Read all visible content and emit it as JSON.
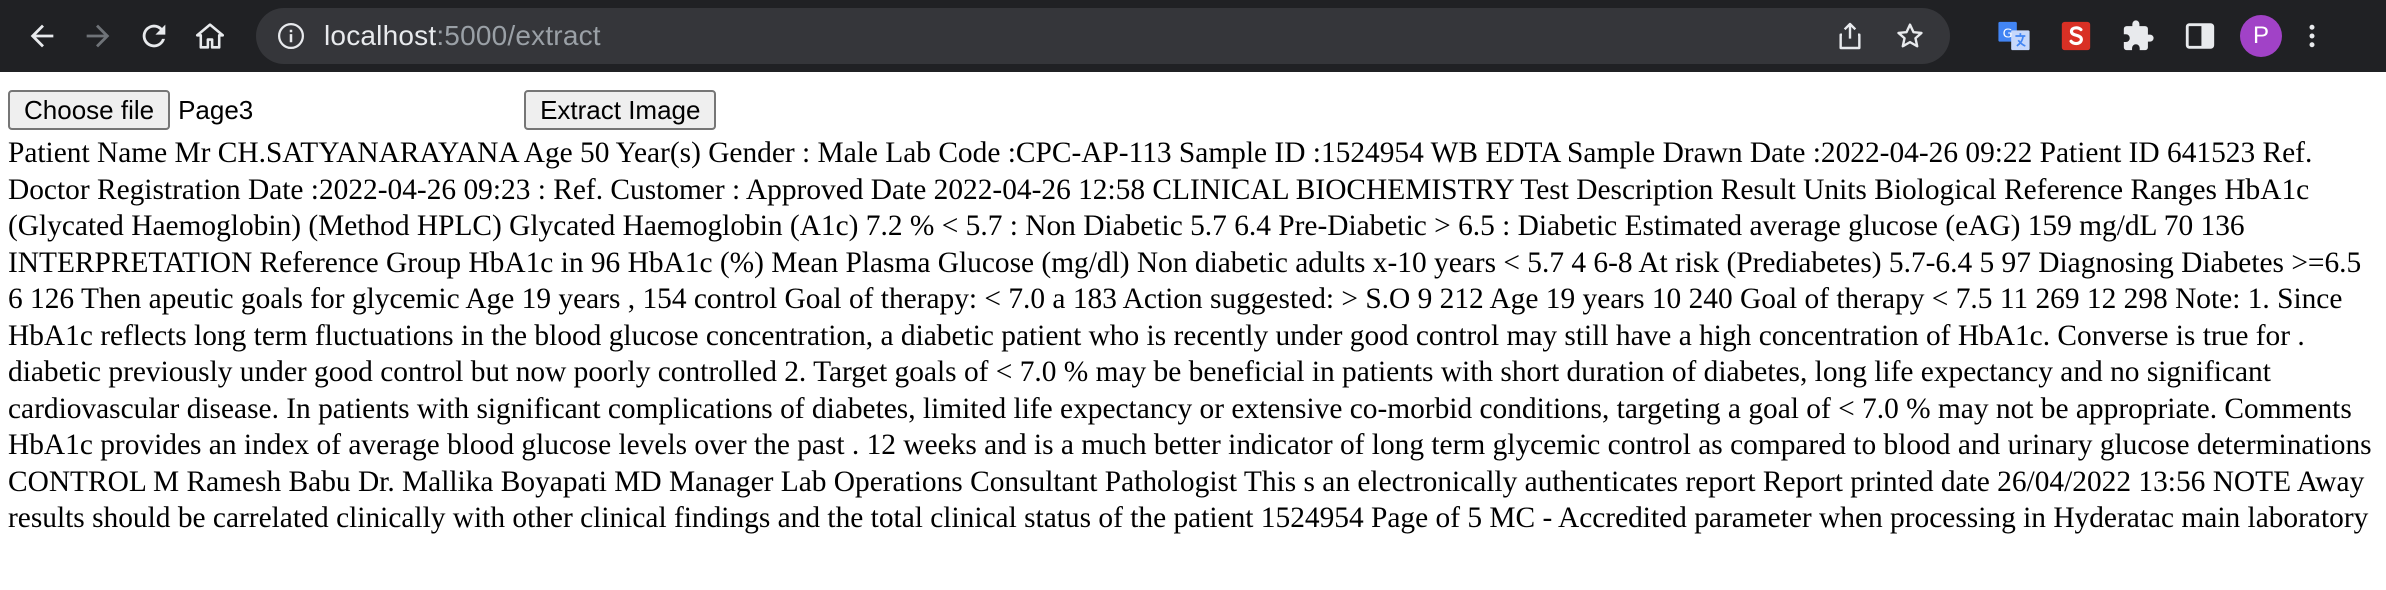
{
  "browser": {
    "url_host": "localhost",
    "url_rest": ":5000/extract",
    "avatar_letter": "P",
    "icons": [
      "back-icon",
      "forward-icon",
      "reload-icon",
      "home-icon",
      "info-icon",
      "share-icon",
      "star-icon",
      "translate-extension-icon",
      "s-extension-icon",
      "puzzle-icon",
      "sidebar-icon",
      "kebab-icon"
    ],
    "colors": {
      "toolbar": "#202124",
      "omnibox": "#35363a",
      "avatar": "#a142c7",
      "s_extension": "#d93025"
    }
  },
  "form": {
    "choose_file_label": "Choose file",
    "file_name": "Page3",
    "extract_label": "Extract Image"
  },
  "extracted_text": "Patient Name Mr CH.SATYANARAYANA Age 50 Year(s) Gender : Male Lab Code :CPC-AP-113 Sample ID :1524954 WB EDTA Sample Drawn Date :2022-04-26 09:22 Patient ID 641523 Ref. Doctor Registration Date :2022-04-26 09:23 : Ref. Customer : Approved Date 2022-04-26 12:58 CLINICAL BIOCHEMISTRY Test Description Result Units Biological Reference Ranges HbA1c (Glycated Haemoglobin) (Method HPLC) Glycated Haemoglobin (A1c) 7.2 % < 5.7 : Non Diabetic 5.7 6.4 Pre-Diabetic > 6.5 : Diabetic Estimated average glucose (eAG) 159 mg/dL 70 136 INTERPRETATION Reference Group HbA1c in 96 HbA1c (%) Mean Plasma Glucose (mg/dl) Non diabetic adults x-10 years < 5.7 4 6-8 At risk (Prediabetes) 5.7-6.4 5 97 Diagnosing Diabetes >=6.5 6 126 Then apeutic goals for glycemic Age 19 years , 154 control Goal of therapy: < 7.0 a 183 Action suggested: > S.O 9 212 Age 19 years 10 240 Goal of therapy < 7.5 11 269 12 298 Note: 1. Since HbA1c reflects long term fluctuations in the blood glucose concentration, a diabetic patient who is recently under good control may still have a high concentration of HbA1c. Converse is true for . diabetic previously under good control but now poorly controlled 2. Target goals of < 7.0 % may be beneficial in patients with short duration of diabetes, long life expectancy and no significant cardiovascular disease. In patients with significant complications of diabetes, limited life expectancy or extensive co-morbid conditions, targeting a goal of < 7.0 % may not be appropriate. Comments HbA1c provides an index of average blood glucose levels over the past . 12 weeks and is a much better indicator of long term glycemic control as compared to blood and urinary glucose determinations CONTROL M Ramesh Babu Dr. Mallika Boyapati MD Manager Lab Operations Consultant Pathologist This s an electronically authenticates report Report printed date 26/04/2022 13:56 NOTE Away results should be carrelated clinically with other clinical findings and the total clinical status of the patient 1524954 Page of 5 MC - Accredited parameter when processing in Hyderatac main laboratory"
}
